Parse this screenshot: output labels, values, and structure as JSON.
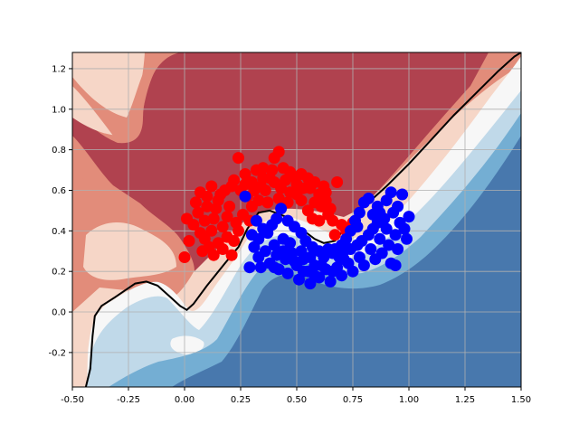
{
  "chart_data": {
    "type": "scatter",
    "title": "",
    "xlabel": "",
    "ylabel": "",
    "xlim": [
      -0.5,
      1.5
    ],
    "ylim": [
      -0.37,
      1.28
    ],
    "grid": true,
    "legend": "none",
    "x_ticks": [
      "-0.50",
      "-0.25",
      "0.00",
      "0.25",
      "0.50",
      "0.75",
      "1.00",
      "1.25",
      "1.50"
    ],
    "y_ticks": [
      "-0.2",
      "0.0",
      "0.2",
      "0.4",
      "0.6",
      "0.8",
      "1.0",
      "1.2"
    ],
    "x_tick_values": [
      -0.5,
      -0.25,
      0,
      0.25,
      0.5,
      0.75,
      1.0,
      1.25,
      1.5
    ],
    "y_tick_values": [
      -0.2,
      0,
      0.2,
      0.4,
      0.6,
      0.8,
      1.0,
      1.2
    ],
    "background": "filled decision-function contours, red above the boundary and blue below",
    "decision_boundary": {
      "color": "#000000",
      "points": [
        [
          -0.44,
          -0.37
        ],
        [
          -0.42,
          -0.28
        ],
        [
          -0.41,
          -0.12
        ],
        [
          -0.4,
          -0.02
        ],
        [
          -0.37,
          0.03
        ],
        [
          -0.3,
          0.08
        ],
        [
          -0.22,
          0.14
        ],
        [
          -0.17,
          0.15
        ],
        [
          -0.12,
          0.13
        ],
        [
          -0.06,
          0.07
        ],
        [
          -0.02,
          0.03
        ],
        [
          0.01,
          0.01
        ],
        [
          0.04,
          0.04
        ],
        [
          0.1,
          0.13
        ],
        [
          0.18,
          0.24
        ],
        [
          0.24,
          0.32
        ],
        [
          0.28,
          0.41
        ],
        [
          0.33,
          0.49
        ],
        [
          0.38,
          0.5
        ],
        [
          0.45,
          0.47
        ],
        [
          0.52,
          0.41
        ],
        [
          0.58,
          0.36
        ],
        [
          0.62,
          0.34
        ],
        [
          0.67,
          0.35
        ],
        [
          0.72,
          0.42
        ],
        [
          0.8,
          0.52
        ],
        [
          0.9,
          0.62
        ],
        [
          1.0,
          0.73
        ],
        [
          1.1,
          0.85
        ],
        [
          1.2,
          0.97
        ],
        [
          1.3,
          1.08
        ],
        [
          1.4,
          1.19
        ],
        [
          1.47,
          1.26
        ],
        [
          1.5,
          1.28
        ]
      ]
    },
    "series": [
      {
        "class": "red",
        "color": "#ff0000",
        "points": [
          [
            0.0,
            0.27
          ],
          [
            0.21,
            0.28
          ],
          [
            0.13,
            0.28
          ],
          [
            0.08,
            0.3
          ],
          [
            0.02,
            0.35
          ],
          [
            0.01,
            0.46
          ],
          [
            0.04,
            0.43
          ],
          [
            0.07,
            0.39
          ],
          [
            0.09,
            0.36
          ],
          [
            0.11,
            0.32
          ],
          [
            0.15,
            0.34
          ],
          [
            0.06,
            0.49
          ],
          [
            0.1,
            0.52
          ],
          [
            0.13,
            0.46
          ],
          [
            0.17,
            0.42
          ],
          [
            0.19,
            0.37
          ],
          [
            0.22,
            0.35
          ],
          [
            0.24,
            0.4
          ],
          [
            0.07,
            0.59
          ],
          [
            0.1,
            0.57
          ],
          [
            0.12,
            0.62
          ],
          [
            0.15,
            0.55
          ],
          [
            0.18,
            0.6
          ],
          [
            0.2,
            0.52
          ],
          [
            0.22,
            0.65
          ],
          [
            0.25,
            0.6
          ],
          [
            0.24,
            0.76
          ],
          [
            0.27,
            0.68
          ],
          [
            0.3,
            0.64
          ],
          [
            0.32,
            0.7
          ],
          [
            0.35,
            0.66
          ],
          [
            0.36,
            0.6
          ],
          [
            0.39,
            0.7
          ],
          [
            0.4,
            0.64
          ],
          [
            0.4,
            0.76
          ],
          [
            0.42,
            0.79
          ],
          [
            0.44,
            0.71
          ],
          [
            0.45,
            0.65
          ],
          [
            0.47,
            0.59
          ],
          [
            0.48,
            0.67
          ],
          [
            0.5,
            0.63
          ],
          [
            0.52,
            0.68
          ],
          [
            0.55,
            0.66
          ],
          [
            0.56,
            0.61
          ],
          [
            0.58,
            0.64
          ],
          [
            0.6,
            0.58
          ],
          [
            0.62,
            0.62
          ],
          [
            0.63,
            0.55
          ],
          [
            0.65,
            0.51
          ],
          [
            0.66,
            0.45
          ],
          [
            0.64,
            0.48
          ],
          [
            0.61,
            0.52
          ],
          [
            0.68,
            0.64
          ],
          [
            0.7,
            0.43
          ],
          [
            0.72,
            0.4
          ],
          [
            0.75,
            0.44
          ],
          [
            0.67,
            0.38
          ],
          [
            0.28,
            0.57
          ],
          [
            0.3,
            0.52
          ],
          [
            0.26,
            0.48
          ],
          [
            0.29,
            0.45
          ],
          [
            0.33,
            0.55
          ],
          [
            0.37,
            0.54
          ],
          [
            0.42,
            0.56
          ],
          [
            0.46,
            0.54
          ],
          [
            0.52,
            0.55
          ],
          [
            0.55,
            0.5
          ],
          [
            0.57,
            0.46
          ],
          [
            0.6,
            0.45
          ],
          [
            0.14,
            0.51
          ],
          [
            0.19,
            0.47
          ],
          [
            0.23,
            0.44
          ],
          [
            0.16,
            0.58
          ],
          [
            0.21,
            0.62
          ],
          [
            0.34,
            0.62
          ],
          [
            0.43,
            0.61
          ],
          [
            0.5,
            0.58
          ],
          [
            0.53,
            0.61
          ],
          [
            0.38,
            0.66
          ],
          [
            0.27,
            0.63
          ],
          [
            0.05,
            0.54
          ],
          [
            0.09,
            0.45
          ],
          [
            0.63,
            0.59
          ],
          [
            0.47,
            0.69
          ],
          [
            0.35,
            0.71
          ],
          [
            0.31,
            0.6
          ],
          [
            0.58,
            0.54
          ],
          [
            0.17,
            0.31
          ],
          [
            0.12,
            0.4
          ]
        ]
      },
      {
        "class": "blue",
        "color": "#0000ff",
        "points": [
          [
            0.27,
            0.57
          ],
          [
            0.29,
            0.22
          ],
          [
            0.33,
            0.27
          ],
          [
            0.34,
            0.22
          ],
          [
            0.36,
            0.3
          ],
          [
            0.38,
            0.24
          ],
          [
            0.4,
            0.33
          ],
          [
            0.41,
            0.28
          ],
          [
            0.42,
            0.21
          ],
          [
            0.44,
            0.36
          ],
          [
            0.45,
            0.26
          ],
          [
            0.46,
            0.19
          ],
          [
            0.48,
            0.29
          ],
          [
            0.5,
            0.23
          ],
          [
            0.51,
            0.16
          ],
          [
            0.53,
            0.26
          ],
          [
            0.55,
            0.2
          ],
          [
            0.56,
            0.14
          ],
          [
            0.58,
            0.23
          ],
          [
            0.6,
            0.17
          ],
          [
            0.62,
            0.27
          ],
          [
            0.63,
            0.21
          ],
          [
            0.65,
            0.15
          ],
          [
            0.66,
            0.29
          ],
          [
            0.68,
            0.22
          ],
          [
            0.7,
            0.18
          ],
          [
            0.71,
            0.3
          ],
          [
            0.73,
            0.24
          ],
          [
            0.75,
            0.2
          ],
          [
            0.77,
            0.33
          ],
          [
            0.78,
            0.27
          ],
          [
            0.8,
            0.23
          ],
          [
            0.82,
            0.38
          ],
          [
            0.83,
            0.31
          ],
          [
            0.85,
            0.26
          ],
          [
            0.86,
            0.44
          ],
          [
            0.87,
            0.36
          ],
          [
            0.88,
            0.29
          ],
          [
            0.9,
            0.41
          ],
          [
            0.91,
            0.33
          ],
          [
            0.92,
            0.24
          ],
          [
            0.93,
            0.49
          ],
          [
            0.94,
            0.38
          ],
          [
            0.95,
            0.31
          ],
          [
            0.96,
            0.44
          ],
          [
            0.98,
            0.41
          ],
          [
            0.99,
            0.36
          ],
          [
            1.0,
            0.47
          ],
          [
            0.97,
            0.58
          ],
          [
            0.92,
            0.59
          ],
          [
            0.86,
            0.52
          ],
          [
            0.82,
            0.56
          ],
          [
            0.8,
            0.54
          ],
          [
            0.78,
            0.49
          ],
          [
            0.76,
            0.45
          ],
          [
            0.74,
            0.4
          ],
          [
            0.72,
            0.36
          ],
          [
            0.7,
            0.33
          ],
          [
            0.67,
            0.31
          ],
          [
            0.64,
            0.31
          ],
          [
            0.6,
            0.3
          ],
          [
            0.57,
            0.32
          ],
          [
            0.54,
            0.35
          ],
          [
            0.52,
            0.39
          ],
          [
            0.49,
            0.42
          ],
          [
            0.46,
            0.45
          ],
          [
            0.43,
            0.51
          ],
          [
            0.41,
            0.46
          ],
          [
            0.39,
            0.43
          ],
          [
            0.37,
            0.39
          ],
          [
            0.35,
            0.41
          ],
          [
            0.33,
            0.36
          ],
          [
            0.31,
            0.32
          ],
          [
            0.3,
            0.38
          ],
          [
            0.32,
            0.45
          ],
          [
            0.47,
            0.34
          ],
          [
            0.52,
            0.3
          ],
          [
            0.56,
            0.27
          ],
          [
            0.61,
            0.23
          ],
          [
            0.69,
            0.27
          ],
          [
            0.74,
            0.31
          ],
          [
            0.79,
            0.35
          ],
          [
            0.84,
            0.41
          ],
          [
            0.89,
            0.46
          ],
          [
            0.95,
            0.52
          ],
          [
            0.9,
            0.55
          ],
          [
            0.84,
            0.48
          ],
          [
            0.77,
            0.42
          ],
          [
            0.71,
            0.26
          ],
          [
            0.66,
            0.2
          ],
          [
            0.58,
            0.18
          ],
          [
            0.53,
            0.2
          ],
          [
            0.49,
            0.25
          ],
          [
            0.44,
            0.3
          ],
          [
            0.4,
            0.22
          ],
          [
            0.94,
            0.23
          ],
          [
            0.87,
            0.49
          ]
        ]
      }
    ]
  }
}
